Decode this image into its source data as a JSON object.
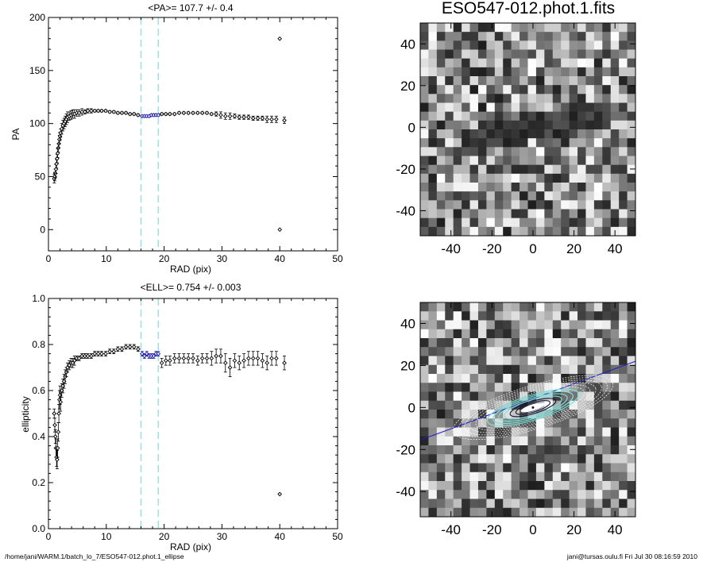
{
  "footer": {
    "path": "/home/jani/WARM.1/batch_lo_7/ESO547-012.phot.1_ellipse",
    "user_time": "jani@tursas.oulu.fi  Fri Jul 30 08:16:59 2010"
  },
  "guides": [
    16,
    19
  ],
  "chart_data": [
    {
      "type": "scatter",
      "title": "<PA>= 107.7 +/-   0.4",
      "xlabel": "RAD (pix)",
      "ylabel": "PA",
      "xlim": [
        0,
        50
      ],
      "ylim": [
        -20,
        200
      ],
      "xticks": [
        "0",
        "10",
        "20",
        "30",
        "40",
        "50"
      ],
      "yticks": [
        "0",
        "50",
        "100",
        "150",
        "200"
      ],
      "xtick_values": [
        0,
        10,
        20,
        30,
        40,
        50
      ],
      "ytick_values": [
        0,
        50,
        100,
        150,
        200
      ],
      "series": [
        {
          "x": [
            1.0,
            1.1,
            1.2,
            1.3,
            1.4,
            1.5,
            1.6,
            1.7,
            1.8,
            1.9,
            2.0,
            2.1,
            2.3,
            2.5,
            2.7,
            2.9,
            3.1,
            3.3,
            3.6,
            3.9,
            4.2,
            4.5,
            4.9,
            5.3,
            5.8,
            6.3,
            6.8,
            7.4,
            8.0,
            8.6,
            9.2,
            9.9,
            10.6,
            11.3,
            12.0,
            12.7,
            13.4,
            14.1,
            14.8,
            15.5,
            16.2,
            16.6,
            17.0,
            17.4,
            17.8,
            18.2,
            18.6,
            19.0,
            19.6,
            20.3,
            21.0,
            21.8,
            22.6,
            23.4,
            24.2,
            25.0,
            25.8,
            26.6,
            27.4,
            28.2,
            29.0,
            29.8,
            30.6,
            31.4,
            32.2,
            33.0,
            33.8,
            34.6,
            35.4,
            36.2,
            37.0,
            37.8,
            38.6,
            39.4,
            40.0,
            40.0,
            40.8
          ],
          "y": [
            48,
            50,
            53,
            57,
            62,
            67,
            72,
            77,
            81,
            85,
            88,
            91,
            95,
            98,
            100,
            102,
            104,
            106,
            107,
            108,
            109,
            109,
            110,
            110,
            111,
            111,
            112,
            112,
            112,
            112,
            112,
            112,
            111,
            111,
            110,
            110,
            110,
            109,
            109,
            108,
            107,
            107,
            107,
            107,
            108,
            108,
            108,
            108,
            109,
            109,
            109,
            109,
            110,
            110,
            110,
            110,
            110,
            110,
            110,
            109,
            109,
            108,
            107,
            107,
            107,
            106,
            106,
            106,
            105,
            105,
            105,
            104,
            104,
            104,
            180,
            0,
            103
          ],
          "err": [
            4,
            4,
            4,
            4,
            4,
            4,
            4,
            4,
            4,
            4,
            4,
            4,
            5,
            5,
            5,
            5,
            5,
            5,
            4,
            4,
            4,
            4,
            3,
            3,
            3,
            2,
            2,
            2,
            1,
            1,
            1,
            1,
            1,
            1,
            1,
            1,
            1,
            1,
            1,
            1,
            1,
            1,
            1,
            1,
            1,
            1,
            1,
            1,
            1,
            1,
            1,
            1,
            1,
            1,
            1,
            1,
            1,
            1,
            1,
            1,
            2,
            3,
            3,
            3,
            2,
            2,
            2,
            2,
            2,
            2,
            2,
            3,
            3,
            3,
            0,
            0,
            3
          ]
        }
      ],
      "highlight_x_range": [
        16,
        19
      ],
      "colors": {
        "points": "#000000",
        "highlight": "#1a1aa8",
        "guides": "#8fe7e7"
      }
    },
    {
      "type": "scatter",
      "title": "<ELL>= 0.754 +/-  0.003",
      "xlabel": "RAD (pix)",
      "ylabel": "ellipticity",
      "xlim": [
        0,
        50
      ],
      "ylim": [
        0,
        1
      ],
      "xticks": [
        "0",
        "10",
        "20",
        "30",
        "40",
        "50"
      ],
      "yticks": [
        "0.0",
        "0.2",
        "0.4",
        "0.6",
        "0.8",
        "1.0"
      ],
      "xtick_values": [
        0,
        10,
        20,
        30,
        40,
        50
      ],
      "ytick_values": [
        0,
        0.2,
        0.4,
        0.6,
        0.8,
        1.0
      ],
      "series": [
        {
          "x": [
            1.0,
            1.1,
            1.2,
            1.3,
            1.4,
            1.5,
            1.6,
            1.7,
            1.8,
            1.9,
            2.0,
            2.1,
            2.3,
            2.5,
            2.7,
            2.9,
            3.1,
            3.3,
            3.6,
            3.9,
            4.2,
            4.5,
            4.9,
            5.3,
            5.8,
            6.3,
            6.8,
            7.4,
            8.0,
            8.6,
            9.2,
            9.9,
            10.6,
            11.3,
            12.0,
            12.7,
            13.4,
            14.1,
            14.8,
            15.5,
            16.2,
            16.6,
            17.0,
            17.4,
            17.8,
            18.2,
            18.6,
            19.0,
            19.6,
            20.3,
            21.0,
            21.8,
            22.6,
            23.4,
            24.2,
            25.0,
            25.8,
            26.6,
            27.4,
            28.2,
            29.0,
            29.8,
            30.6,
            31.4,
            32.2,
            33.0,
            33.8,
            34.6,
            35.4,
            36.2,
            37.0,
            37.8,
            38.6,
            39.4,
            40.0,
            40.8
          ],
          "y": [
            0.5,
            0.45,
            0.4,
            0.35,
            0.31,
            0.3,
            0.35,
            0.42,
            0.5,
            0.56,
            0.58,
            0.55,
            0.6,
            0.62,
            0.64,
            0.66,
            0.68,
            0.7,
            0.71,
            0.72,
            0.72,
            0.73,
            0.74,
            0.74,
            0.75,
            0.75,
            0.75,
            0.75,
            0.76,
            0.76,
            0.76,
            0.76,
            0.77,
            0.77,
            0.78,
            0.78,
            0.79,
            0.79,
            0.79,
            0.78,
            0.76,
            0.75,
            0.76,
            0.75,
            0.75,
            0.75,
            0.76,
            0.76,
            0.72,
            0.73,
            0.73,
            0.74,
            0.74,
            0.74,
            0.74,
            0.74,
            0.73,
            0.74,
            0.74,
            0.74,
            0.75,
            0.75,
            0.72,
            0.7,
            0.73,
            0.72,
            0.73,
            0.74,
            0.74,
            0.74,
            0.73,
            0.72,
            0.74,
            0.74,
            0.15,
            0.72
          ],
          "err": [
            0.02,
            0.03,
            0.03,
            0.04,
            0.04,
            0.04,
            0.04,
            0.04,
            0.04,
            0.04,
            0.04,
            0.04,
            0.03,
            0.03,
            0.03,
            0.03,
            0.02,
            0.02,
            0.02,
            0.02,
            0.02,
            0.02,
            0.01,
            0.01,
            0.01,
            0.01,
            0.01,
            0.01,
            0.01,
            0.01,
            0.01,
            0.01,
            0.01,
            0.01,
            0.01,
            0.01,
            0.01,
            0.01,
            0.01,
            0.01,
            0.01,
            0.01,
            0.01,
            0.01,
            0.01,
            0.01,
            0.01,
            0.01,
            0.02,
            0.02,
            0.02,
            0.02,
            0.02,
            0.02,
            0.02,
            0.02,
            0.02,
            0.02,
            0.02,
            0.03,
            0.03,
            0.03,
            0.04,
            0.04,
            0.03,
            0.03,
            0.03,
            0.03,
            0.03,
            0.03,
            0.03,
            0.03,
            0.03,
            0.03,
            0.0,
            0.03
          ]
        }
      ],
      "highlight_x_range": [
        16,
        19
      ],
      "colors": {
        "points": "#000000",
        "highlight": "#1a1aa8",
        "guides": "#8fe7e7"
      }
    },
    {
      "type": "heatmap",
      "title": "ESO547-012.phot.1.fits",
      "xlim": [
        -55,
        50
      ],
      "ylim": [
        -52,
        50
      ],
      "xticks": [
        "-40",
        "-20",
        "0",
        "20",
        "40"
      ],
      "yticks": [
        "-40",
        "-20",
        "0",
        "20",
        "40"
      ],
      "xtick_values": [
        -40,
        -20,
        0,
        20,
        40
      ],
      "ytick_values": [
        -40,
        -20,
        0,
        20,
        40
      ],
      "grid_size": [
        26,
        24
      ],
      "seed": 7
    },
    {
      "type": "heatmap",
      "title": "",
      "xlim": [
        -55,
        50
      ],
      "ylim": [
        -52,
        50
      ],
      "xticks": [
        "-40",
        "-20",
        "0",
        "20",
        "40"
      ],
      "yticks": [
        "-40",
        "-20",
        "0",
        "20",
        "40"
      ],
      "xtick_values": [
        -40,
        -20,
        0,
        20,
        40
      ],
      "ytick_values": [
        -40,
        -20,
        0,
        20,
        40
      ],
      "grid_size": [
        26,
        24
      ],
      "seed": 13,
      "overlay": "isophote-ellipses",
      "major_axis_line_color": "#2020c0",
      "ellipse_colors": [
        "#ffffff",
        "#7fe0d8",
        "#1a1a3a"
      ]
    }
  ]
}
